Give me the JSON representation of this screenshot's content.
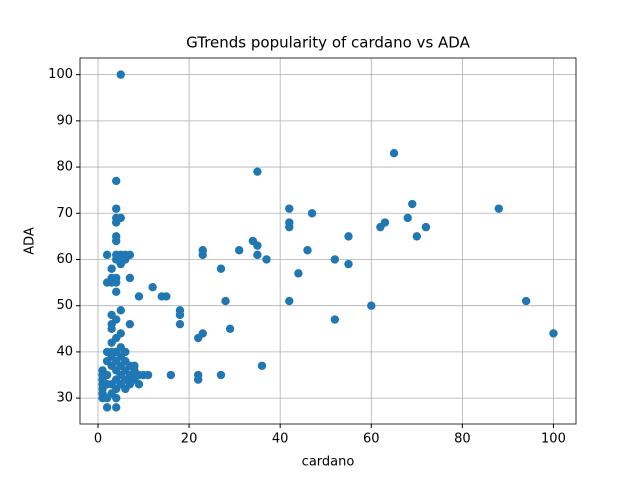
{
  "chart_data": {
    "type": "scatter",
    "title": "GTrends popularity of cardano vs ADA",
    "x_label": "cardano",
    "y_label": "ADA",
    "color": "#1f77b4",
    "grid": true,
    "xlim": [
      -3.95,
      104.95
    ],
    "ylim": [
      24.4,
      103.6
    ],
    "xticks": [
      0,
      20,
      40,
      60,
      80,
      100
    ],
    "yticks": [
      30,
      40,
      50,
      60,
      70,
      80,
      90,
      100
    ],
    "x": [
      5,
      65,
      4,
      35,
      88,
      69,
      42,
      47,
      68,
      63,
      62,
      72,
      42,
      42,
      70,
      55,
      34,
      35,
      31,
      23,
      23,
      35,
      46,
      37,
      52,
      55,
      27,
      44,
      12,
      14,
      15,
      9,
      28,
      42,
      94,
      60,
      18,
      18,
      18,
      52,
      29,
      23,
      100,
      22,
      36,
      16,
      22,
      22,
      27,
      10,
      11,
      9,
      9,
      2,
      4,
      5,
      6,
      7,
      4,
      5,
      6,
      5,
      4,
      4,
      5,
      4,
      4,
      4,
      3,
      4,
      7,
      2,
      3,
      3,
      4,
      4,
      5,
      3,
      3,
      7,
      4,
      3,
      5,
      4,
      2,
      3,
      1,
      1,
      1,
      1,
      1,
      1,
      1,
      2,
      2,
      2,
      2,
      2,
      3,
      3,
      3,
      3,
      4,
      4,
      4,
      4,
      4,
      4,
      4,
      5,
      5,
      5,
      5,
      6,
      6,
      6,
      6,
      7,
      7,
      7,
      7,
      8,
      8,
      8,
      8,
      5,
      3,
      6
    ],
    "values": [
      100,
      83,
      77,
      79,
      71,
      72,
      71,
      70,
      69,
      68,
      67,
      67,
      68,
      67,
      65,
      65,
      64,
      63,
      62,
      62,
      61,
      61,
      62,
      60,
      60,
      59,
      58,
      57,
      54,
      52,
      52,
      52,
      51,
      51,
      51,
      50,
      49,
      48,
      46,
      47,
      45,
      44,
      44,
      43,
      37,
      35,
      35,
      34,
      35,
      35,
      35,
      33,
      35,
      61,
      61,
      61,
      61,
      61,
      60,
      60,
      60,
      59,
      71,
      69,
      69,
      68,
      65,
      64,
      58,
      56,
      56,
      55,
      55,
      56,
      55,
      53,
      49,
      48,
      46,
      46,
      47,
      45,
      44,
      43,
      40,
      40,
      36,
      35,
      34,
      33,
      32,
      31,
      30,
      28,
      30,
      33,
      35,
      38,
      39,
      37,
      33,
      31,
      28,
      30,
      32,
      34,
      36,
      38,
      40,
      33,
      35,
      37,
      39,
      32,
      34,
      36,
      38,
      33,
      35,
      37,
      34,
      35,
      36,
      37,
      34,
      41,
      42,
      40
    ]
  }
}
